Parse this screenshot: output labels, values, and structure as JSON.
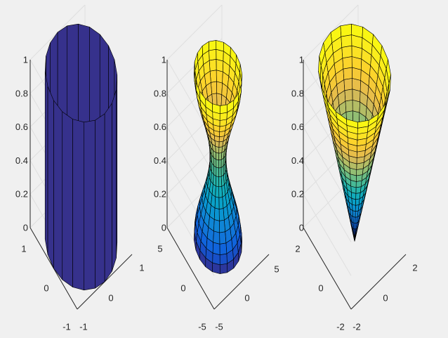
{
  "figure": {
    "background": "#f0f0f0",
    "axis_color": "#262626",
    "grid_color": "#dfdfdf",
    "edge_color": "#000000"
  },
  "chart_data": [
    {
      "type": "surface",
      "title": "",
      "surface": "cylinder",
      "radius_profile": "constant r = 1",
      "color": "#36318c",
      "colormap": "uniform",
      "zlim": [
        0,
        1
      ],
      "z_ticks": [
        "0",
        "0.2",
        "0.4",
        "0.6",
        "0.8",
        "1"
      ],
      "x_ticks": [
        "-1",
        "0",
        "1"
      ],
      "y_ticks": [
        "-1",
        "0",
        "1"
      ],
      "grid": true
    },
    {
      "type": "surface",
      "title": "",
      "surface": "cylinder",
      "radius_profile": "r = 2 + cos(t), t in [0, 2pi]",
      "colormap": "parula",
      "zlim": [
        0,
        1
      ],
      "z_ticks": [
        "0",
        "0.2",
        "0.4",
        "0.6",
        "0.8",
        "1"
      ],
      "x_ticks": [
        "-5",
        "0",
        "5"
      ],
      "y_ticks": [
        "-5",
        "0",
        "5"
      ],
      "grid": true
    },
    {
      "type": "surface",
      "title": "",
      "surface": "cylinder",
      "radius_profile": "r = 2t (cone), t in [0, 1]",
      "colormap": "parula",
      "zlim": [
        0,
        1
      ],
      "z_ticks": [
        "0",
        "0.2",
        "0.4",
        "0.6",
        "0.8",
        "1"
      ],
      "x_ticks": [
        "-2",
        "0",
        "2"
      ],
      "y_ticks": [
        "-2",
        "0",
        "2"
      ],
      "grid": true
    }
  ]
}
